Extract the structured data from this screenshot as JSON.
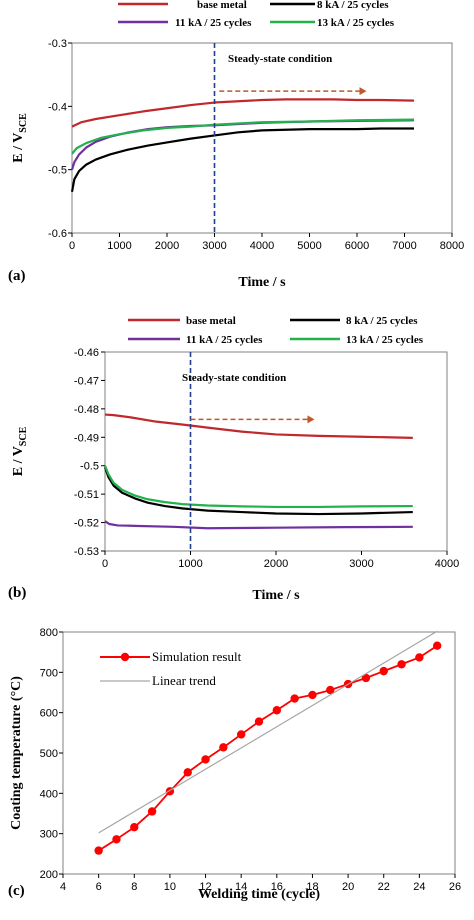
{
  "chart_data": [
    {
      "type": "line",
      "panel_label": "(a)",
      "xlabel": "Time / s",
      "ylabel_main": "E / V",
      "ylabel_sub": "SCE",
      "xlim": [
        0,
        8000
      ],
      "ylim": [
        -0.6,
        -0.3
      ],
      "xticks": [
        "0",
        "1000",
        "2000",
        "3000",
        "4000",
        "5000",
        "6000",
        "7000",
        "8000"
      ],
      "yticks": [
        "-0.6",
        "-0.5",
        "-0.4",
        "-0.3"
      ],
      "annotation": "Steady-state condition",
      "steady_state_x": 3000,
      "arrow_x": [
        3100,
        6200
      ],
      "arrow_y": -0.376,
      "legend_position": "top",
      "series": [
        {
          "name": "base metal",
          "color": "#c0282d",
          "x": [
            0,
            200,
            500,
            1000,
            1500,
            2000,
            2500,
            3000,
            3500,
            4000,
            4500,
            5000,
            5500,
            6000,
            6500,
            7200
          ],
          "y": [
            -0.432,
            -0.425,
            -0.42,
            -0.414,
            -0.408,
            -0.403,
            -0.398,
            -0.394,
            -0.392,
            -0.39,
            -0.389,
            -0.389,
            -0.389,
            -0.39,
            -0.39,
            -0.391
          ]
        },
        {
          "name": "8 kA / 25 cycles",
          "color": "#000000",
          "x": [
            0,
            50,
            150,
            300,
            500,
            800,
            1200,
            1600,
            2000,
            2500,
            3000,
            3500,
            4000,
            4500,
            5000,
            5500,
            6000,
            6500,
            7200
          ],
          "y": [
            -0.535,
            -0.515,
            -0.502,
            -0.492,
            -0.484,
            -0.476,
            -0.468,
            -0.462,
            -0.457,
            -0.451,
            -0.446,
            -0.441,
            -0.438,
            -0.437,
            -0.436,
            -0.436,
            -0.436,
            -0.435,
            -0.435
          ]
        },
        {
          "name": "11 kA / 25 cycles",
          "color": "#7030a0",
          "x": [
            0,
            50,
            150,
            300,
            500,
            800,
            1200,
            1600,
            2000,
            2500,
            3000,
            3500,
            4000,
            5000,
            6000,
            7200
          ],
          "y": [
            -0.5,
            -0.488,
            -0.476,
            -0.465,
            -0.456,
            -0.448,
            -0.441,
            -0.436,
            -0.433,
            -0.431,
            -0.43,
            -0.428,
            -0.426,
            -0.424,
            -0.423,
            -0.422
          ]
        },
        {
          "name": "13 kA / 25 cycles",
          "color": "#22b14c",
          "x": [
            0,
            100,
            300,
            600,
            1000,
            1500,
            2000,
            2500,
            3000,
            3500,
            4000,
            5000,
            6000,
            7200
          ],
          "y": [
            -0.475,
            -0.466,
            -0.458,
            -0.45,
            -0.444,
            -0.438,
            -0.434,
            -0.432,
            -0.429,
            -0.427,
            -0.425,
            -0.424,
            -0.422,
            -0.421
          ]
        }
      ]
    },
    {
      "type": "line",
      "panel_label": "(b)",
      "xlabel": "Time / s",
      "ylabel_main": "E / V",
      "ylabel_sub": "SCE",
      "xlim": [
        0,
        4000
      ],
      "ylim": [
        -0.53,
        -0.46
      ],
      "xticks": [
        "0",
        "1000",
        "2000",
        "3000",
        "4000"
      ],
      "yticks": [
        "-0.53",
        "-0.52",
        "-0.51",
        "-0.5",
        "-0.49",
        "-0.48",
        "-0.47",
        "-0.46"
      ],
      "annotation": "Steady-state condition",
      "steady_state_x": 1000,
      "arrow_x": [
        1000,
        2450
      ],
      "arrow_y": -0.4837,
      "legend_position": "top",
      "series": [
        {
          "name": "base metal",
          "color": "#c0282d",
          "x": [
            0,
            100,
            300,
            600,
            900,
            1200,
            1600,
            2000,
            2500,
            3000,
            3600
          ],
          "y": [
            -0.482,
            -0.4822,
            -0.483,
            -0.4845,
            -0.4855,
            -0.4866,
            -0.488,
            -0.489,
            -0.4895,
            -0.4898,
            -0.4902
          ]
        },
        {
          "name": "8 kA / 25 cycles",
          "color": "#000000",
          "x": [
            0,
            40,
            100,
            200,
            350,
            500,
            700,
            900,
            1200,
            1600,
            2000,
            2500,
            3000,
            3600
          ],
          "y": [
            -0.5005,
            -0.504,
            -0.507,
            -0.5095,
            -0.5115,
            -0.513,
            -0.5142,
            -0.515,
            -0.5158,
            -0.5163,
            -0.5168,
            -0.517,
            -0.5168,
            -0.5163
          ]
        },
        {
          "name": "11 kA / 25 cycles",
          "color": "#7030a0",
          "x": [
            0,
            50,
            150,
            400,
            800,
            1200,
            2000,
            2800,
            3600
          ],
          "y": [
            -0.5195,
            -0.5205,
            -0.521,
            -0.5212,
            -0.5215,
            -0.522,
            -0.5218,
            -0.5216,
            -0.5215
          ]
        },
        {
          "name": "13 kA / 25 cycles",
          "color": "#22b14c",
          "x": [
            0,
            40,
            100,
            200,
            350,
            500,
            700,
            900,
            1200,
            1600,
            2000,
            2500,
            3000,
            3600
          ],
          "y": [
            -0.5,
            -0.503,
            -0.506,
            -0.5085,
            -0.5105,
            -0.5118,
            -0.5128,
            -0.5135,
            -0.514,
            -0.5143,
            -0.5145,
            -0.5145,
            -0.5143,
            -0.5142
          ]
        }
      ]
    },
    {
      "type": "line",
      "panel_label": "(c)",
      "xlabel": "Welding time (cycle)",
      "ylabel": "Coating temperature (°C)",
      "xlim": [
        4,
        26
      ],
      "ylim": [
        200,
        800
      ],
      "xticks": [
        "4",
        "6",
        "8",
        "10",
        "12",
        "14",
        "16",
        "18",
        "20",
        "22",
        "24",
        "26"
      ],
      "yticks": [
        "200",
        "300",
        "400",
        "500",
        "600",
        "700",
        "800"
      ],
      "legend_position": "top-left",
      "series": [
        {
          "name": "Simulation result",
          "color": "#ff0000",
          "marker": "circle",
          "x": [
            6,
            7,
            8,
            9,
            10,
            11,
            12,
            13,
            14,
            15,
            16,
            17,
            18,
            19,
            20,
            21,
            22,
            23,
            24,
            25
          ],
          "y": [
            258,
            286,
            316,
            355,
            405,
            452,
            484,
            514,
            546,
            578,
            606,
            635,
            644,
            656,
            671,
            686,
            703,
            720,
            737,
            766
          ]
        },
        {
          "name": "Linear trend",
          "color": "#a6a6a6",
          "x": [
            6,
            25
          ],
          "y": [
            302,
            802
          ]
        }
      ]
    }
  ]
}
